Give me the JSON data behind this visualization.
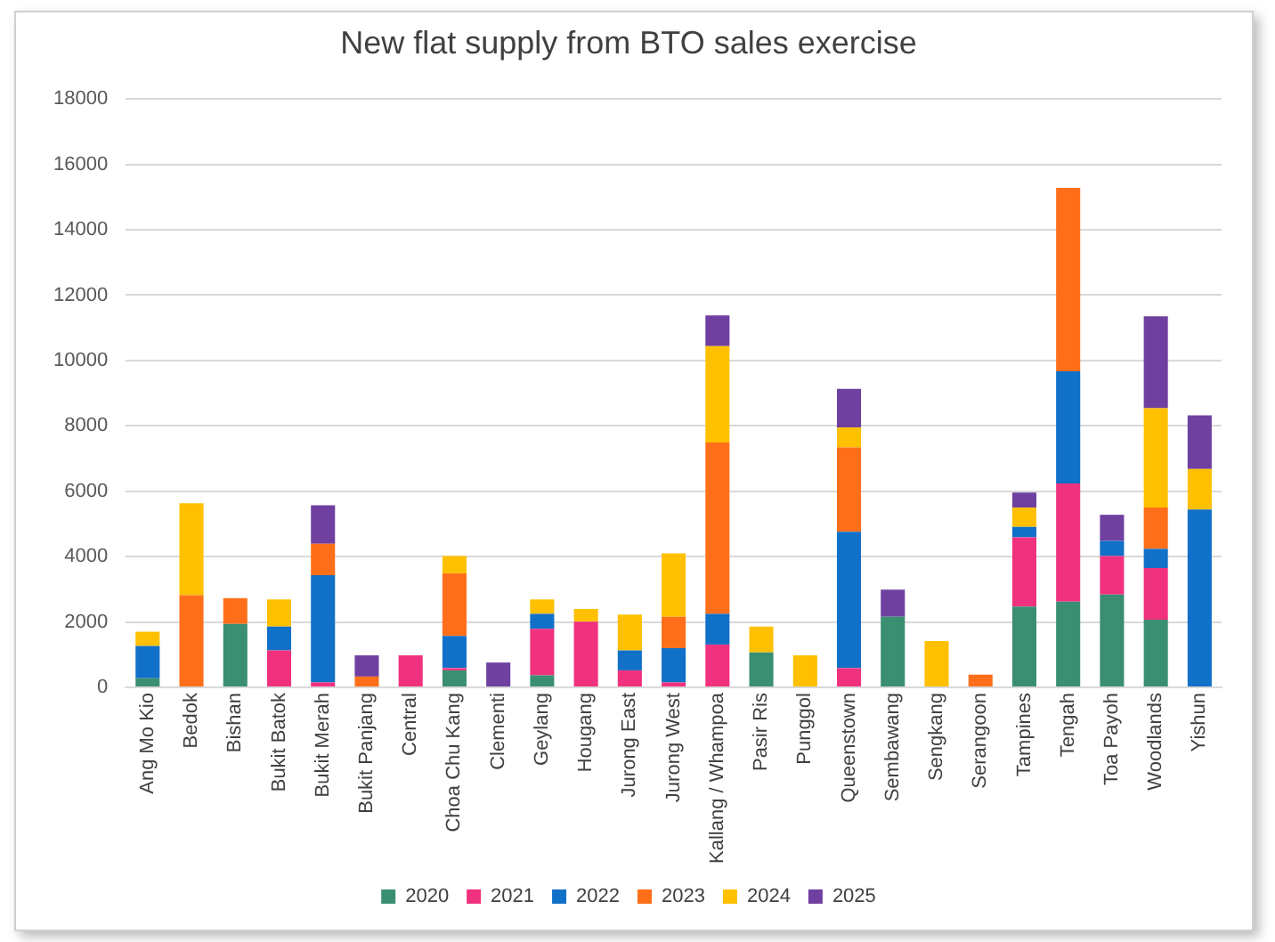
{
  "chart_data": {
    "type": "bar",
    "title": "New flat supply from BTO sales exercise",
    "stacked": true,
    "categories": [
      "Ang Mo Kio",
      "Bedok",
      "Bishan",
      "Bukit Batok",
      "Bukit Merah",
      "Bukit Panjang",
      "Central",
      "Choa Chu Kang",
      "Clementi",
      "Geylang",
      "Hougang",
      "Jurong East",
      "Jurong West",
      "Kallang / Whampoa",
      "Pasir Ris",
      "Punggol",
      "Queenstown",
      "Sembawang",
      "Sengkang",
      "Serangoon",
      "Tampines",
      "Tengah",
      "Toa Payoh",
      "Woodlands",
      "Yishun"
    ],
    "series": [
      {
        "name": "2020",
        "color": "#3a8f73",
        "values": [
          280,
          null,
          1940,
          null,
          null,
          null,
          null,
          520,
          null,
          370,
          null,
          null,
          null,
          null,
          1070,
          null,
          null,
          2160,
          null,
          null,
          2470,
          2620,
          2840,
          2070,
          null
        ]
      },
      {
        "name": "2021",
        "color": "#f0317e",
        "values": [
          null,
          null,
          null,
          1130,
          150,
          null,
          980,
          70,
          null,
          1420,
          2010,
          520,
          150,
          1310,
          null,
          null,
          590,
          null,
          null,
          null,
          2120,
          3620,
          1180,
          1580,
          null
        ]
      },
      {
        "name": "2022",
        "color": "#1170c8",
        "values": [
          990,
          null,
          null,
          730,
          3280,
          null,
          null,
          980,
          null,
          460,
          null,
          610,
          1050,
          940,
          null,
          null,
          4170,
          null,
          null,
          null,
          320,
          3430,
          460,
          590,
          5440
        ]
      },
      {
        "name": "2023",
        "color": "#ff6f1a",
        "values": [
          null,
          2820,
          790,
          null,
          960,
          330,
          null,
          1920,
          null,
          null,
          null,
          null,
          960,
          5240,
          null,
          null,
          2580,
          null,
          null,
          390,
          null,
          5610,
          null,
          1260,
          null
        ]
      },
      {
        "name": "2024",
        "color": "#ffc000",
        "values": [
          430,
          2810,
          null,
          830,
          null,
          null,
          null,
          530,
          null,
          440,
          390,
          1100,
          1940,
          2950,
          790,
          980,
          610,
          null,
          1420,
          null,
          590,
          null,
          null,
          3040,
          1240
        ]
      },
      {
        "name": "2025",
        "color": "#7040a0",
        "values": [
          null,
          null,
          null,
          null,
          1180,
          650,
          null,
          null,
          760,
          null,
          null,
          null,
          null,
          940,
          null,
          null,
          1180,
          830,
          null,
          null,
          460,
          null,
          800,
          2810,
          1640
        ]
      }
    ],
    "ylim": [
      0,
      18000
    ],
    "yticks": [
      0,
      2000,
      4000,
      6000,
      8000,
      10000,
      12000,
      14000,
      16000,
      18000
    ],
    "grid": "y",
    "legend": "bottom"
  }
}
